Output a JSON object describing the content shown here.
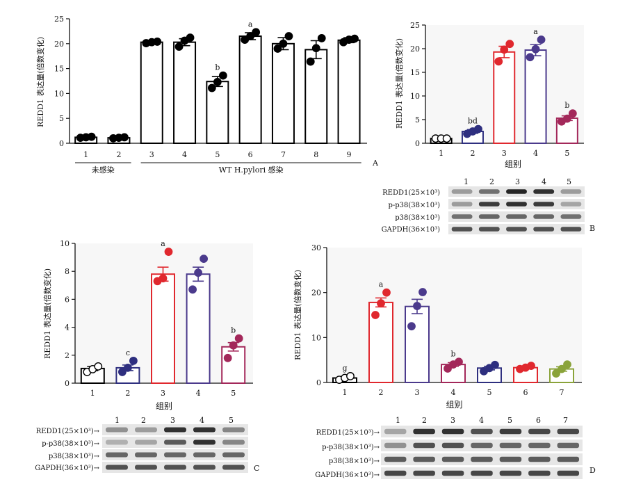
{
  "chart_data": [
    {
      "panel": "A",
      "type": "bar",
      "ylabel": "REDD1 表达量(倍数变化)",
      "ylim": [
        0,
        25
      ],
      "yticks": [
        0,
        5,
        10,
        15,
        20,
        25
      ],
      "categories": [
        "1",
        "2",
        "3",
        "4",
        "5",
        "6",
        "7",
        "8",
        "9"
      ],
      "values": [
        1.2,
        1.1,
        20.3,
        20.3,
        12.4,
        21.5,
        20.0,
        18.8,
        20.7
      ],
      "errors": [
        0.2,
        0.2,
        0.3,
        0.7,
        1.0,
        0.7,
        1.2,
        1.8,
        0.5
      ],
      "points": [
        [
          1.1,
          1.2,
          1.3
        ],
        [
          1.0,
          1.1,
          1.2
        ],
        [
          20.1,
          20.3,
          20.4
        ],
        [
          19.4,
          20.6,
          21.2
        ],
        [
          11.1,
          12.3,
          13.6
        ],
        [
          20.8,
          21.5,
          22.3
        ],
        [
          19.0,
          20.0,
          21.5
        ],
        [
          16.4,
          19.1,
          21.1
        ],
        [
          20.3,
          20.8,
          21.0
        ]
      ],
      "bar_colors": [
        "#000",
        "#000",
        "#000",
        "#000",
        "#000",
        "#000",
        "#000",
        "#000",
        "#000"
      ],
      "point_colors": [
        "#000",
        "#000",
        "#000",
        "#000",
        "#000",
        "#000",
        "#000",
        "#000",
        "#000"
      ],
      "annotations": [
        "",
        "",
        "",
        "",
        "b",
        "a",
        "",
        "",
        ""
      ],
      "groups": [
        {
          "label": "未感染",
          "from": 0,
          "to": 1
        },
        {
          "label": "WT H.pylori 感染",
          "from": 2,
          "to": 8
        }
      ],
      "legend": "none"
    },
    {
      "panel": "B",
      "type": "bar",
      "xlabel": "组别",
      "ylabel": "REDD1 表达量(倍数变化)",
      "ylim": [
        0,
        25
      ],
      "yticks": [
        0,
        5,
        10,
        15,
        20,
        25
      ],
      "categories": [
        "1",
        "2",
        "3",
        "4",
        "5"
      ],
      "values": [
        1.0,
        2.5,
        19.3,
        19.7,
        5.3
      ],
      "errors": [
        0.05,
        0.4,
        1.2,
        1.2,
        0.5
      ],
      "points": [
        [
          1.0,
          1.0,
          1.0
        ],
        [
          2.0,
          2.5,
          3.0
        ],
        [
          17.3,
          19.8,
          21.0
        ],
        [
          18.2,
          19.9,
          21.9
        ],
        [
          4.6,
          5.2,
          6.3
        ]
      ],
      "bar_colors": [
        "#000",
        "#2e2f7f",
        "#e0282e",
        "#4b3a8c",
        "#a3285a"
      ],
      "point_colors": [
        "#000",
        "#2e2f7f",
        "#e0282e",
        "#4b3a8c",
        "#a3285a"
      ],
      "annotations": [
        "",
        "bd",
        "",
        "a",
        "b"
      ],
      "legend": "none"
    },
    {
      "panel": "C",
      "type": "bar",
      "xlabel": "组别",
      "ylabel": "REDD1 表达量(倍数变化)",
      "ylim": [
        0,
        10
      ],
      "yticks": [
        0,
        2,
        4,
        6,
        8,
        10
      ],
      "categories": [
        "1",
        "2",
        "3",
        "4",
        "5"
      ],
      "values": [
        1.05,
        1.1,
        7.8,
        7.8,
        2.6
      ],
      "errors": [
        0.15,
        0.2,
        0.5,
        0.5,
        0.3
      ],
      "points": [
        [
          0.8,
          1.0,
          1.2
        ],
        [
          0.8,
          1.1,
          1.6
        ],
        [
          7.3,
          7.5,
          9.4
        ],
        [
          6.7,
          7.9,
          8.9
        ],
        [
          1.8,
          2.7,
          3.2
        ]
      ],
      "bar_colors": [
        "#000",
        "#2e2f7f",
        "#e0282e",
        "#4b3a8c",
        "#a3285a"
      ],
      "point_colors": [
        "#000",
        "#2e2f7f",
        "#e0282e",
        "#4b3a8c",
        "#a3285a"
      ],
      "annotations": [
        "",
        "c",
        "a",
        "",
        "b"
      ],
      "legend": "none"
    },
    {
      "panel": "D",
      "type": "bar",
      "xlabel": "组别",
      "ylabel": "REDD1 表达量(倍数变化)",
      "ylim": [
        0,
        30
      ],
      "yticks": [
        0,
        10,
        20,
        30
      ],
      "categories": [
        "1",
        "2",
        "3",
        "4",
        "5",
        "6",
        "7"
      ],
      "values": [
        1.0,
        17.8,
        16.9,
        4.0,
        3.2,
        3.3,
        3.0
      ],
      "errors": [
        0.3,
        1.0,
        1.6,
        0.4,
        0.4,
        0.3,
        0.5
      ],
      "points": [
        [
          0.6,
          1.0,
          1.4
        ],
        [
          15.0,
          17.6,
          20.0
        ],
        [
          12.5,
          17.0,
          20.1
        ],
        [
          3.1,
          4.0,
          4.6
        ],
        [
          2.5,
          3.2,
          3.9
        ],
        [
          3.0,
          3.3,
          3.7
        ],
        [
          2.0,
          3.0,
          4.0
        ]
      ],
      "bar_colors": [
        "#000",
        "#e0282e",
        "#4b3a8c",
        "#a3285a",
        "#2e2f7f",
        "#e0282e",
        "#8aa33a"
      ],
      "point_colors": [
        "#000",
        "#e0282e",
        "#4b3a8c",
        "#a3285a",
        "#2e2f7f",
        "#e0282e",
        "#8aa33a"
      ],
      "annotations": [
        "g",
        "a",
        "",
        "b",
        "",
        "",
        ""
      ],
      "legend": "none"
    }
  ],
  "blots": {
    "B": {
      "lanes": [
        "1",
        "2",
        "3",
        "4",
        "5"
      ],
      "rows": [
        "REDD1(25×10³)",
        "p-p38(38×10³)",
        "p38(38×10³)",
        "GAPDH(36×10³)"
      ],
      "letter": "B"
    },
    "C": {
      "lanes": [
        "1",
        "2",
        "3",
        "4",
        "5"
      ],
      "rows": [
        "REDD1(25×10³)→",
        "p-p38(38×10³)→",
        "p38(38×10³)→",
        "GAPDH(36×10³)→"
      ],
      "letter": "C"
    },
    "D": {
      "lanes": [
        "1",
        "2",
        "3",
        "4",
        "5",
        "6",
        "7"
      ],
      "rows": [
        "REDD1(25×10³)→",
        "p-p38(38×10³)→",
        "p38(38×10³)→",
        "GAPDH(36×10³)→"
      ],
      "letter": "D"
    }
  },
  "panel_letter_A": "A"
}
